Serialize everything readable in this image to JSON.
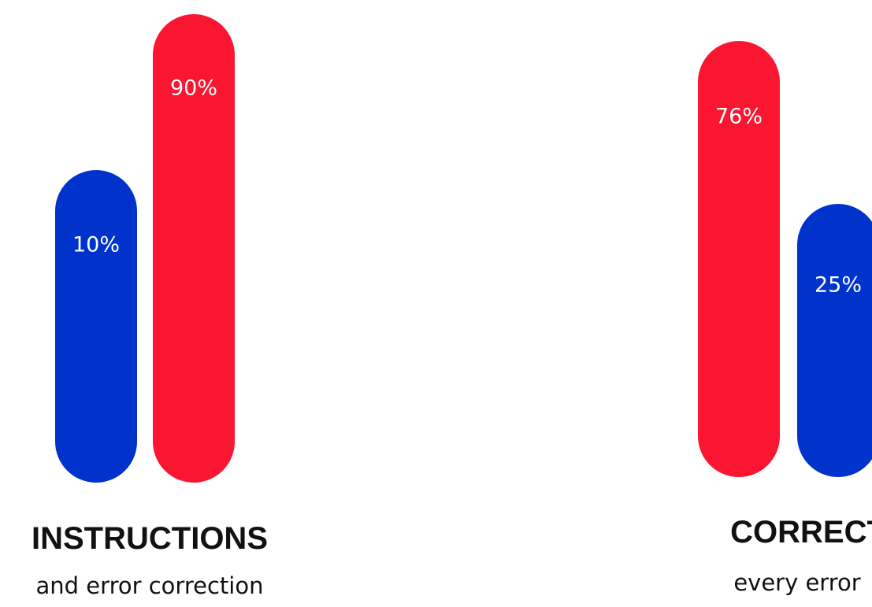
{
  "chart_data": [
    {
      "type": "bar",
      "title": "INSTRUCTIONS",
      "subtitle": "and error correction",
      "series": [
        {
          "values": [
            10
          ],
          "value_label": "10%",
          "color": "#0033cc"
        },
        {
          "values": [
            90
          ],
          "value_label": "90%",
          "color": "#fa1530"
        }
      ]
    },
    {
      "type": "bar",
      "title": "CORRECT",
      "subtitle": "every error",
      "series": [
        {
          "values": [
            76
          ],
          "value_label": "76%",
          "color": "#fa1530"
        },
        {
          "values": [
            25
          ],
          "value_label": "25%",
          "color": "#0033cc"
        }
      ]
    }
  ]
}
